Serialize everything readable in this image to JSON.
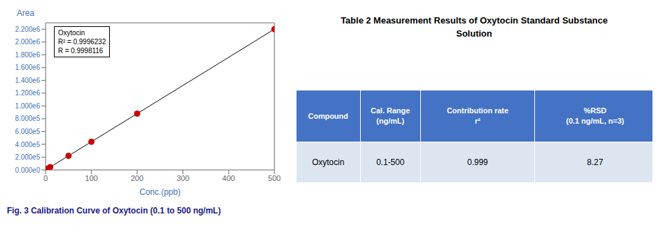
{
  "chart_data": {
    "type": "scatter",
    "xlabel": "Conc.(ppb)",
    "ylabel": "Area",
    "label_color": "#4472c4",
    "annotations": [
      "Oxytocin",
      "R² = 0.9996232",
      "R = 0.9998116"
    ],
    "caption": "Fig. 3  Calibration Curve of Oxytocin (0.1 to 500 ng/mL)",
    "x": [
      0.1,
      1,
      5,
      10,
      50,
      100,
      200,
      500
    ],
    "series": [
      {
        "type": "line",
        "color": "#000000",
        "marker": "none",
        "values": [
          440,
          4400,
          22000,
          44000,
          220000,
          440000,
          880000,
          2200000
        ]
      },
      {
        "type": "scatter",
        "color": "#cc0000",
        "marker": "circle",
        "values": [
          440,
          4400,
          22000,
          44000,
          220000,
          440000,
          880000,
          2200000
        ]
      }
    ],
    "xlim": [
      0,
      500
    ],
    "xticks": [
      0,
      100,
      200,
      300,
      400,
      500
    ],
    "ylim": [
      0,
      2300000
    ],
    "yticks": [
      {
        "value": 0,
        "label": "0.000e0"
      },
      {
        "value": 200000,
        "label": "2.000e5"
      },
      {
        "value": 400000,
        "label": "4.000e5"
      },
      {
        "value": 600000,
        "label": "6.000e5"
      },
      {
        "value": 800000,
        "label": "8.000e5"
      },
      {
        "value": 1000000,
        "label": "1.000e6"
      },
      {
        "value": 1200000,
        "label": "1.200e6"
      },
      {
        "value": 1400000,
        "label": "1.400e6"
      },
      {
        "value": 1600000,
        "label": "1.600e6"
      },
      {
        "value": 1800000,
        "label": "1.800e6"
      },
      {
        "value": 2000000,
        "label": "2.000e6"
      },
      {
        "value": 2200000,
        "label": "2.200e6"
      }
    ],
    "grid": false,
    "table": {
      "title": "Table 2  Measurement Results of Oxytocin Standard Substance\nSolution",
      "header": [
        "Compound",
        "Cal. Range\n(ng/mL)",
        "Contribution rate\nr²",
        "%RSD\n(0.1 ng/mL, n=3)"
      ],
      "rows": [
        [
          "Oxytocin",
          "0.1-500",
          "0.999",
          "8.27"
        ]
      ],
      "header_color": "#4472c4",
      "header_text_color": "#ffffff",
      "row_color": "#dce6f1",
      "row_text_color": "#000000"
    }
  }
}
